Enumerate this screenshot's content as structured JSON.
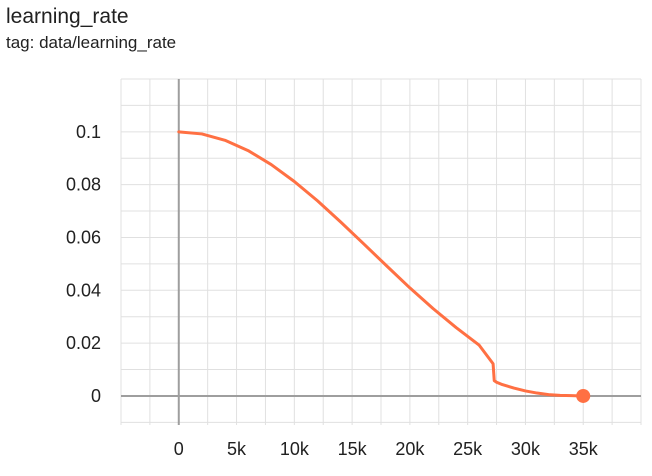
{
  "header": {
    "title": "learning_rate",
    "subtitle": "tag: data/learning_rate"
  },
  "colors": {
    "series": "#ff7043",
    "grid": "#e0e0e0",
    "axis": "#9e9e9e"
  },
  "chart_data": {
    "type": "line",
    "title": "learning_rate",
    "subtitle": "tag: data/learning_rate",
    "xlim": [
      -5000,
      40000
    ],
    "ylim": [
      -0.011,
      0.12
    ],
    "x_ticks": [
      0,
      5000,
      10000,
      15000,
      20000,
      25000,
      30000,
      35000
    ],
    "x_tick_labels": [
      "0",
      "5k",
      "10k",
      "15k",
      "20k",
      "25k",
      "30k",
      "35k"
    ],
    "y_ticks": [
      0,
      0.02,
      0.04,
      0.06,
      0.08,
      0.1
    ],
    "y_tick_labels": [
      "0",
      "0.02",
      "0.04",
      "0.06",
      "0.08",
      "0.1"
    ],
    "grid": true,
    "series": [
      {
        "color": "#ff7043",
        "x": [
          0,
          2000,
          4000,
          6000,
          8000,
          10000,
          12000,
          14000,
          16000,
          18000,
          20000,
          22000,
          24000,
          26000,
          27200,
          27300,
          27500,
          28000,
          29000,
          30000,
          31000,
          32000,
          33000,
          34000,
          35000
        ],
        "y": [
          0.1,
          0.0992,
          0.0968,
          0.0929,
          0.0876,
          0.0812,
          0.0739,
          0.0659,
          0.0576,
          0.0492,
          0.0409,
          0.0331,
          0.0259,
          0.0192,
          0.0122,
          0.0058,
          0.0052,
          0.0043,
          0.003,
          0.0019,
          0.0011,
          0.0005,
          0.0002,
          0.0001,
          0.0
        ],
        "last_point_marker": true
      }
    ]
  }
}
